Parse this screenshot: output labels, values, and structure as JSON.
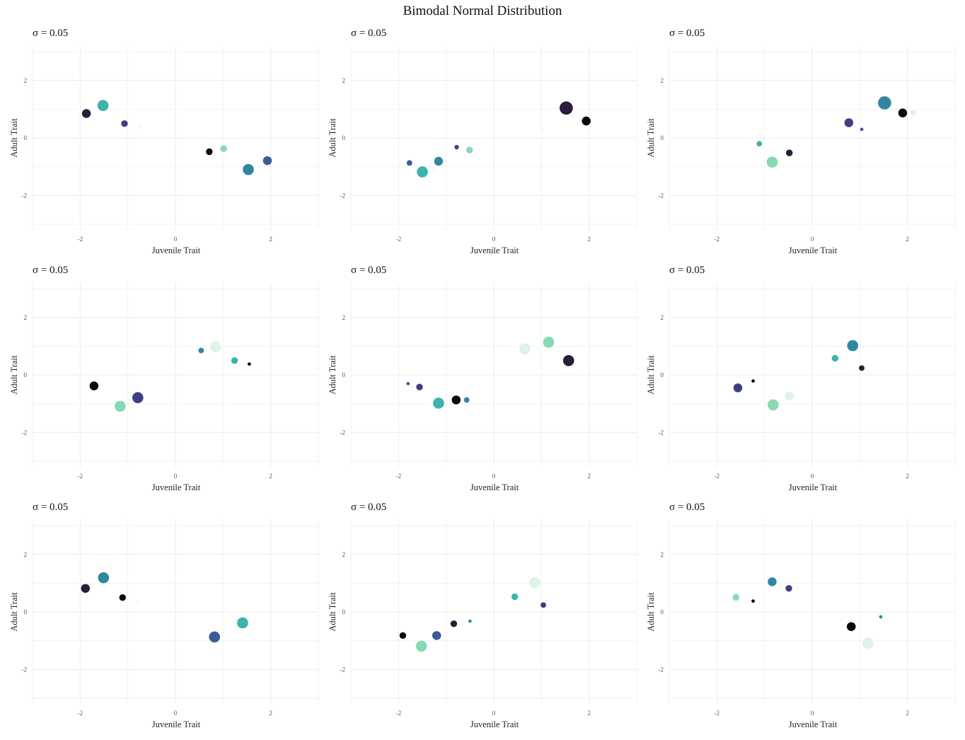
{
  "figure": {
    "title": "Bimodal Normal Distribution"
  },
  "chart_data": [
    {
      "type": "scatter",
      "title": "σ = 0.05",
      "xlabel": "Juvenile Trait",
      "ylabel": "Adult Trait",
      "xlim": [
        -3.0,
        3.0
      ],
      "ylim": [
        -3.2,
        3.2
      ],
      "xticks": [
        -2,
        0,
        2
      ],
      "yticks": [
        -2,
        0,
        2
      ],
      "grid": true,
      "points": [
        {
          "x": -1.87,
          "y": 0.85,
          "size": 3,
          "color": "#2b1c3a"
        },
        {
          "x": -1.52,
          "y": 1.13,
          "size": 4,
          "color": "#3eb2ad"
        },
        {
          "x": -1.07,
          "y": 0.5,
          "size": 2,
          "color": "#3e3f82"
        },
        {
          "x": -0.76,
          "y": 0.36,
          "size": 0.5,
          "color": "#f0faf4"
        },
        {
          "x": 0.71,
          "y": -0.48,
          "size": 2,
          "color": "#0a0a0a"
        },
        {
          "x": 1.01,
          "y": -0.37,
          "size": 2,
          "color": "#86d9b2"
        },
        {
          "x": 1.53,
          "y": -1.1,
          "size": 4,
          "color": "#3187a2"
        },
        {
          "x": 1.93,
          "y": -0.79,
          "size": 3,
          "color": "#3c5b99"
        }
      ]
    },
    {
      "type": "scatter",
      "title": "σ = 0.05",
      "xlabel": "Juvenile Trait",
      "ylabel": "Adult Trait",
      "xlim": [
        -3.0,
        3.0
      ],
      "ylim": [
        -3.2,
        3.2
      ],
      "xticks": [
        -2,
        0,
        2
      ],
      "yticks": [
        -2,
        0,
        2
      ],
      "grid": true,
      "points": [
        {
          "x": -1.77,
          "y": -0.87,
          "size": 1.5,
          "color": "#3c5b99"
        },
        {
          "x": -1.5,
          "y": -1.18,
          "size": 4,
          "color": "#3eb2ad"
        },
        {
          "x": -1.16,
          "y": -0.81,
          "size": 3,
          "color": "#3187a2"
        },
        {
          "x": -0.78,
          "y": -0.32,
          "size": 1,
          "color": "#3e3f82"
        },
        {
          "x": -0.51,
          "y": -0.42,
          "size": 2,
          "color": "#86d9b2"
        },
        {
          "x": 1.01,
          "y": 0.3,
          "size": 0.5,
          "color": "#f0faf4"
        },
        {
          "x": 1.52,
          "y": 1.04,
          "size": 5,
          "color": "#2b1c3a"
        },
        {
          "x": 1.94,
          "y": 0.59,
          "size": 3,
          "color": "#0a0a0a"
        }
      ]
    },
    {
      "type": "scatter",
      "title": "σ = 0.05",
      "xlabel": "Juvenile Trait",
      "ylabel": "Adult Trait",
      "xlim": [
        -3.0,
        3.0
      ],
      "ylim": [
        -3.2,
        3.2
      ],
      "xticks": [
        -2,
        0,
        2
      ],
      "yticks": [
        -2,
        0,
        2
      ],
      "grid": true,
      "points": [
        {
          "x": -1.11,
          "y": -0.2,
          "size": 1.5,
          "color": "#3eb2ad"
        },
        {
          "x": -0.84,
          "y": -0.84,
          "size": 4,
          "color": "#86d9b2"
        },
        {
          "x": -0.48,
          "y": -0.52,
          "size": 2,
          "color": "#2b1c3a"
        },
        {
          "x": 0.77,
          "y": 0.53,
          "size": 3,
          "color": "#3e3f82"
        },
        {
          "x": 1.04,
          "y": 0.3,
          "size": 0.5,
          "color": "#3c5b99"
        },
        {
          "x": 1.52,
          "y": 1.22,
          "size": 5,
          "color": "#3187a2"
        },
        {
          "x": 1.9,
          "y": 0.87,
          "size": 3,
          "color": "#0a0a0a"
        },
        {
          "x": 2.12,
          "y": 0.87,
          "size": 1.5,
          "color": "#dff3e6"
        }
      ]
    },
    {
      "type": "scatter",
      "title": "σ = 0.05",
      "xlabel": "Juvenile Trait",
      "ylabel": "Adult Trait",
      "xlim": [
        -3.0,
        3.0
      ],
      "ylim": [
        -3.2,
        3.2
      ],
      "xticks": [
        -2,
        0,
        2
      ],
      "yticks": [
        -2,
        0,
        2
      ],
      "grid": true,
      "points": [
        {
          "x": -1.71,
          "y": -0.38,
          "size": 3,
          "color": "#0a0a0a"
        },
        {
          "x": -1.16,
          "y": -1.09,
          "size": 4,
          "color": "#86d9b2"
        },
        {
          "x": -0.79,
          "y": -0.79,
          "size": 4,
          "color": "#3e3f82"
        },
        {
          "x": 0.54,
          "y": 0.85,
          "size": 1.5,
          "color": "#3187a2"
        },
        {
          "x": 0.84,
          "y": 0.98,
          "size": 4,
          "color": "#dff3e6"
        },
        {
          "x": 1.24,
          "y": 0.5,
          "size": 2,
          "color": "#3eb2ad"
        },
        {
          "x": 1.55,
          "y": 0.38,
          "size": 0.5,
          "color": "#0a0a0a"
        }
      ]
    },
    {
      "type": "scatter",
      "title": "σ = 0.05",
      "xlabel": "Juvenile Trait",
      "ylabel": "Adult Trait",
      "xlim": [
        -3.0,
        3.0
      ],
      "ylim": [
        -3.2,
        3.2
      ],
      "xticks": [
        -2,
        0,
        2
      ],
      "yticks": [
        -2,
        0,
        2
      ],
      "grid": true,
      "points": [
        {
          "x": -1.8,
          "y": -0.3,
          "size": 0.5,
          "color": "#3c5b99"
        },
        {
          "x": -1.56,
          "y": -0.42,
          "size": 2,
          "color": "#3e3f82"
        },
        {
          "x": -1.16,
          "y": -0.98,
          "size": 4,
          "color": "#3eb2ad"
        },
        {
          "x": -0.79,
          "y": -0.87,
          "size": 3,
          "color": "#0a0a0a"
        },
        {
          "x": -0.57,
          "y": -0.87,
          "size": 1.5,
          "color": "#3187a2"
        },
        {
          "x": 0.65,
          "y": 0.91,
          "size": 4,
          "color": "#dff3e6"
        },
        {
          "x": 1.15,
          "y": 1.14,
          "size": 4,
          "color": "#86d9b2"
        },
        {
          "x": 1.57,
          "y": 0.5,
          "size": 4,
          "color": "#2b1c3a"
        }
      ]
    },
    {
      "type": "scatter",
      "title": "σ = 0.05",
      "xlabel": "Juvenile Trait",
      "ylabel": "Adult Trait",
      "xlim": [
        -3.0,
        3.0
      ],
      "ylim": [
        -3.2,
        3.2
      ],
      "xticks": [
        -2,
        0,
        2
      ],
      "yticks": [
        -2,
        0,
        2
      ],
      "grid": true,
      "points": [
        {
          "x": -1.56,
          "y": -0.45,
          "size": 3,
          "color": "#3e3f82"
        },
        {
          "x": -1.24,
          "y": -0.21,
          "size": 0.5,
          "color": "#0a0a0a"
        },
        {
          "x": -0.82,
          "y": -1.04,
          "size": 4,
          "color": "#86d9b2"
        },
        {
          "x": -0.48,
          "y": -0.73,
          "size": 3,
          "color": "#dff3e6"
        },
        {
          "x": 0.48,
          "y": 0.58,
          "size": 2,
          "color": "#3eb2ad"
        },
        {
          "x": 0.85,
          "y": 1.02,
          "size": 4,
          "color": "#3187a2"
        },
        {
          "x": 1.04,
          "y": 0.24,
          "size": 1.5,
          "color": "#2b1c3a"
        }
      ]
    },
    {
      "type": "scatter",
      "title": "σ = 0.05",
      "xlabel": "Juvenile Trait",
      "ylabel": "Adult Trait",
      "xlim": [
        -3.0,
        3.0
      ],
      "ylim": [
        -3.2,
        3.2
      ],
      "xticks": [
        -2,
        0,
        2
      ],
      "yticks": [
        -2,
        0,
        2
      ],
      "grid": true,
      "points": [
        {
          "x": -1.89,
          "y": 0.82,
          "size": 3,
          "color": "#2b1c3a"
        },
        {
          "x": -1.51,
          "y": 1.19,
          "size": 4,
          "color": "#3187a2"
        },
        {
          "x": -1.11,
          "y": 0.5,
          "size": 2,
          "color": "#0a0a0a"
        },
        {
          "x": -0.8,
          "y": 0.34,
          "size": 0.5,
          "color": "#f0faf4"
        },
        {
          "x": 0.82,
          "y": -0.87,
          "size": 4,
          "color": "#3c5b99"
        },
        {
          "x": 1.41,
          "y": -0.38,
          "size": 4,
          "color": "#3eb2ad"
        }
      ]
    },
    {
      "type": "scatter",
      "title": "σ = 0.05",
      "xlabel": "Juvenile Trait",
      "ylabel": "Adult Trait",
      "xlim": [
        -3.0,
        3.0
      ],
      "ylim": [
        -3.2,
        3.2
      ],
      "xticks": [
        -2,
        0,
        2
      ],
      "yticks": [
        -2,
        0,
        2
      ],
      "grid": true,
      "points": [
        {
          "x": -1.91,
          "y": -0.82,
          "size": 2,
          "color": "#0a0a0a"
        },
        {
          "x": -1.52,
          "y": -1.19,
          "size": 4,
          "color": "#86d9b2"
        },
        {
          "x": -1.2,
          "y": -0.82,
          "size": 3,
          "color": "#3c5b99"
        },
        {
          "x": -0.84,
          "y": -0.41,
          "size": 2,
          "color": "#2b1c3a"
        },
        {
          "x": -0.5,
          "y": -0.32,
          "size": 0.5,
          "color": "#3187a2"
        },
        {
          "x": 0.44,
          "y": 0.53,
          "size": 2,
          "color": "#3eb2ad"
        },
        {
          "x": 0.86,
          "y": 1.02,
          "size": 4,
          "color": "#dff3e6"
        },
        {
          "x": 1.04,
          "y": 0.24,
          "size": 1.5,
          "color": "#3e3f82"
        }
      ]
    },
    {
      "type": "scatter",
      "title": "σ = 0.05",
      "xlabel": "Juvenile Trait",
      "ylabel": "Adult Trait",
      "xlim": [
        -3.0,
        3.0
      ],
      "ylim": [
        -3.2,
        3.2
      ],
      "xticks": [
        -2,
        0,
        2
      ],
      "yticks": [
        -2,
        0,
        2
      ],
      "grid": true,
      "points": [
        {
          "x": -1.6,
          "y": 0.51,
          "size": 2,
          "color": "#86d9b2"
        },
        {
          "x": -1.24,
          "y": 0.38,
          "size": 0.5,
          "color": "#0a0a0a"
        },
        {
          "x": -0.84,
          "y": 1.05,
          "size": 3,
          "color": "#3187a2"
        },
        {
          "x": -0.49,
          "y": 0.82,
          "size": 2,
          "color": "#3e3f82"
        },
        {
          "x": 0.82,
          "y": -0.51,
          "size": 3,
          "color": "#0a0a0a"
        },
        {
          "x": 1.17,
          "y": -1.09,
          "size": 4,
          "color": "#dff3e6"
        },
        {
          "x": 1.44,
          "y": -0.17,
          "size": 0.5,
          "color": "#3187a2"
        }
      ]
    }
  ]
}
